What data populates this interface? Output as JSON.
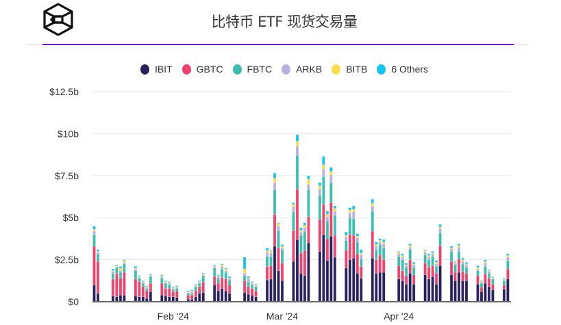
{
  "header": {
    "title": "比特币 ETF 现货交易量",
    "logo": "hexagon-cube-logo"
  },
  "chart_data": {
    "type": "bar",
    "stacked": true,
    "title": "比特币 ETF 现货交易量",
    "xlabel": "",
    "ylabel": "",
    "ylim": [
      0,
      12.5
    ],
    "y_unit": "billion USD",
    "y_ticks": [
      0,
      2.5,
      5,
      7.5,
      10,
      12.5
    ],
    "y_tick_labels": [
      "$0",
      "$2.5b",
      "$5b",
      "$7.5b",
      "$10b",
      "$12.5b"
    ],
    "x_ticks": [
      {
        "date": "2024-02-01",
        "label": "Feb '24"
      },
      {
        "date": "2024-03-01",
        "label": "Mar '24"
      },
      {
        "date": "2024-04-01",
        "label": "Apr '24"
      }
    ],
    "grid": "horizontal",
    "legend_position": "top",
    "series": [
      {
        "name": "IBIT",
        "color": "#2a2160"
      },
      {
        "name": "GBTC",
        "color": "#f0426a"
      },
      {
        "name": "FBTC",
        "color": "#3dbfb0"
      },
      {
        "name": "ARKB",
        "color": "#b9b0e0"
      },
      {
        "name": "BITB",
        "color": "#fcdc4d"
      },
      {
        "name": "6 Others",
        "color": "#14c4ef"
      }
    ],
    "dates": [
      "2024-01-11",
      "2024-01-12",
      "2024-01-16",
      "2024-01-17",
      "2024-01-18",
      "2024-01-19",
      "2024-01-22",
      "2024-01-23",
      "2024-01-24",
      "2024-01-25",
      "2024-01-26",
      "2024-01-29",
      "2024-01-30",
      "2024-01-31",
      "2024-02-01",
      "2024-02-02",
      "2024-02-05",
      "2024-02-06",
      "2024-02-07",
      "2024-02-08",
      "2024-02-09",
      "2024-02-12",
      "2024-02-13",
      "2024-02-14",
      "2024-02-15",
      "2024-02-16",
      "2024-02-20",
      "2024-02-21",
      "2024-02-22",
      "2024-02-23",
      "2024-02-26",
      "2024-02-27",
      "2024-02-28",
      "2024-02-29",
      "2024-03-01",
      "2024-03-04",
      "2024-03-05",
      "2024-03-06",
      "2024-03-07",
      "2024-03-08",
      "2024-03-11",
      "2024-03-12",
      "2024-03-13",
      "2024-03-14",
      "2024-03-15",
      "2024-03-18",
      "2024-03-19",
      "2024-03-20",
      "2024-03-21",
      "2024-03-22",
      "2024-03-25",
      "2024-03-26",
      "2024-03-27",
      "2024-03-28",
      "2024-04-01",
      "2024-04-02",
      "2024-04-03",
      "2024-04-04",
      "2024-04-05",
      "2024-04-08",
      "2024-04-09",
      "2024-04-10",
      "2024-04-11",
      "2024-04-12",
      "2024-04-15",
      "2024-04-16",
      "2024-04-17",
      "2024-04-18",
      "2024-04-19",
      "2024-04-22",
      "2024-04-23",
      "2024-04-24",
      "2024-04-25",
      "2024-04-26",
      "2024-04-29",
      "2024-04-30"
    ],
    "values": [
      [
        1.0,
        2.3,
        0.7,
        0.2,
        0.1,
        0.2
      ],
      [
        0.5,
        1.9,
        0.45,
        0.1,
        0.05,
        0.1
      ],
      [
        0.35,
        1.0,
        0.35,
        0.1,
        0.05,
        0.1
      ],
      [
        0.3,
        1.4,
        0.35,
        0.05,
        0.05,
        0.05
      ],
      [
        0.4,
        1.0,
        0.35,
        0.1,
        0.15,
        0.1
      ],
      [
        0.4,
        1.35,
        0.5,
        0.1,
        0.1,
        0.05
      ],
      [
        0.35,
        1.0,
        0.5,
        0.1,
        0.05,
        0.1
      ],
      [
        0.3,
        0.9,
        0.2,
        0.05,
        0.05,
        0.05
      ],
      [
        0.3,
        0.6,
        0.2,
        0.05,
        0.05,
        0.05
      ],
      [
        0.2,
        0.45,
        0.15,
        0.05,
        0.05,
        0.05
      ],
      [
        0.6,
        0.5,
        0.4,
        0.05,
        0.05,
        0.05
      ],
      [
        0.4,
        0.7,
        0.3,
        0.1,
        0.05,
        0.05
      ],
      [
        0.35,
        0.45,
        0.3,
        0.05,
        0.05,
        0.05
      ],
      [
        0.3,
        0.5,
        0.2,
        0.1,
        0.05,
        0.05
      ],
      [
        0.3,
        0.3,
        0.15,
        0.05,
        0.05,
        0.05
      ],
      [
        0.25,
        0.4,
        0.15,
        0.05,
        0.05,
        0.05
      ],
      [
        0.15,
        0.25,
        0.1,
        0.05,
        0.05,
        0.05
      ],
      [
        0.15,
        0.25,
        0.1,
        0.1,
        0.05,
        0.05
      ],
      [
        0.3,
        0.35,
        0.25,
        0.05,
        0.05,
        0.05
      ],
      [
        0.5,
        0.4,
        0.2,
        0.05,
        0.05,
        0.05
      ],
      [
        0.55,
        0.6,
        0.4,
        0.05,
        0.05,
        0.05
      ],
      [
        1.0,
        0.5,
        0.5,
        0.1,
        0.05,
        0.05
      ],
      [
        0.65,
        0.45,
        0.3,
        0.1,
        0.05,
        0.05
      ],
      [
        0.8,
        0.65,
        0.5,
        0.15,
        0.1,
        0.05
      ],
      [
        0.65,
        0.7,
        0.4,
        0.1,
        0.1,
        0.05
      ],
      [
        0.5,
        0.5,
        0.3,
        0.05,
        0.05,
        0.1
      ],
      [
        0.55,
        0.7,
        0.3,
        0.15,
        0.25,
        0.7
      ],
      [
        0.45,
        0.45,
        0.3,
        0.15,
        0.05,
        0.1
      ],
      [
        0.4,
        0.4,
        0.2,
        0.1,
        0.05,
        0.05
      ],
      [
        0.3,
        0.35,
        0.25,
        0.05,
        0.05,
        0.05
      ],
      [
        1.3,
        0.8,
        0.6,
        0.25,
        0.1,
        0.15
      ],
      [
        1.35,
        0.8,
        0.55,
        0.2,
        0.1,
        0.05
      ],
      [
        3.3,
        1.9,
        1.45,
        0.45,
        0.25,
        0.3
      ],
      [
        1.85,
        1.35,
        1.05,
        0.25,
        0.15,
        0.05
      ],
      [
        1.25,
        1.05,
        0.8,
        0.1,
        0.1,
        0.1
      ],
      [
        2.4,
        1.85,
        1.1,
        0.3,
        0.15,
        0.1
      ],
      [
        3.7,
        3.0,
        2.0,
        0.55,
        0.3,
        0.4
      ],
      [
        1.7,
        1.2,
        1.05,
        0.2,
        0.1,
        0.15
      ],
      [
        1.55,
        1.5,
        1.1,
        0.25,
        0.15,
        0.15
      ],
      [
        3.5,
        1.55,
        1.6,
        0.35,
        0.3,
        0.2
      ],
      [
        3.0,
        1.9,
        1.4,
        0.4,
        0.2,
        0.2
      ],
      [
        4.0,
        1.8,
        1.65,
        0.45,
        0.25,
        0.5
      ],
      [
        2.45,
        1.3,
        1.05,
        0.25,
        0.15,
        0.2
      ],
      [
        3.9,
        2.0,
        1.2,
        0.45,
        0.2,
        0.25
      ],
      [
        2.65,
        1.3,
        1.2,
        0.25,
        0.15,
        0.15
      ],
      [
        2.0,
        1.05,
        0.6,
        0.2,
        0.1,
        0.2
      ],
      [
        2.5,
        1.5,
        1.0,
        0.3,
        0.15,
        0.15
      ],
      [
        2.6,
        1.35,
        1.0,
        0.4,
        0.15,
        0.2
      ],
      [
        1.7,
        1.15,
        0.7,
        0.25,
        0.1,
        0.15
      ],
      [
        1.4,
        0.7,
        0.45,
        0.25,
        0.1,
        0.2
      ],
      [
        2.6,
        1.6,
        1.2,
        0.3,
        0.15,
        0.25
      ],
      [
        1.7,
        0.8,
        0.6,
        0.2,
        0.1,
        0.15
      ],
      [
        1.75,
        1.05,
        0.6,
        0.15,
        0.1,
        0.1
      ],
      [
        1.75,
        0.75,
        0.7,
        0.25,
        0.1,
        0.15
      ],
      [
        1.35,
        0.8,
        0.55,
        0.15,
        0.1,
        0.05
      ],
      [
        1.25,
        0.6,
        0.65,
        0.15,
        0.1,
        0.1
      ],
      [
        1.05,
        0.5,
        0.5,
        0.1,
        0.05,
        0.1
      ],
      [
        1.7,
        0.8,
        0.6,
        0.15,
        0.1,
        0.1
      ],
      [
        1.05,
        0.55,
        0.45,
        0.15,
        0.05,
        0.1
      ],
      [
        1.6,
        0.7,
        0.5,
        0.15,
        0.1,
        0.05
      ],
      [
        1.35,
        0.7,
        0.45,
        0.15,
        0.1,
        0.1
      ],
      [
        1.5,
        0.65,
        0.55,
        0.15,
        0.05,
        0.1
      ],
      [
        1.05,
        0.65,
        0.4,
        0.15,
        0.1,
        0.1
      ],
      [
        2.15,
        1.2,
        0.75,
        0.25,
        0.1,
        0.15
      ],
      [
        1.6,
        0.8,
        0.6,
        0.15,
        0.05,
        0.1
      ],
      [
        1.25,
        0.5,
        0.45,
        0.1,
        0.05,
        0.05
      ],
      [
        1.75,
        0.8,
        0.45,
        0.25,
        0.1,
        0.1
      ],
      [
        1.25,
        0.55,
        0.45,
        0.15,
        0.1,
        0.1
      ],
      [
        1.25,
        0.45,
        0.35,
        0.15,
        0.05,
        0.1
      ],
      [
        1.05,
        0.5,
        0.3,
        0.1,
        0.1,
        0.1
      ],
      [
        0.6,
        0.25,
        0.25,
        0.05,
        0.05,
        0.05
      ],
      [
        1.1,
        0.55,
        0.45,
        0.2,
        0.1,
        0.1
      ],
      [
        0.9,
        0.5,
        0.3,
        0.1,
        0.05,
        0.05
      ],
      [
        0.7,
        0.35,
        0.3,
        0.05,
        0.05,
        0.05
      ],
      [
        0.75,
        0.25,
        0.25,
        0.05,
        0.05,
        0.05
      ],
      [
        1.35,
        0.6,
        0.5,
        0.2,
        0.1,
        0.1
      ]
    ]
  }
}
